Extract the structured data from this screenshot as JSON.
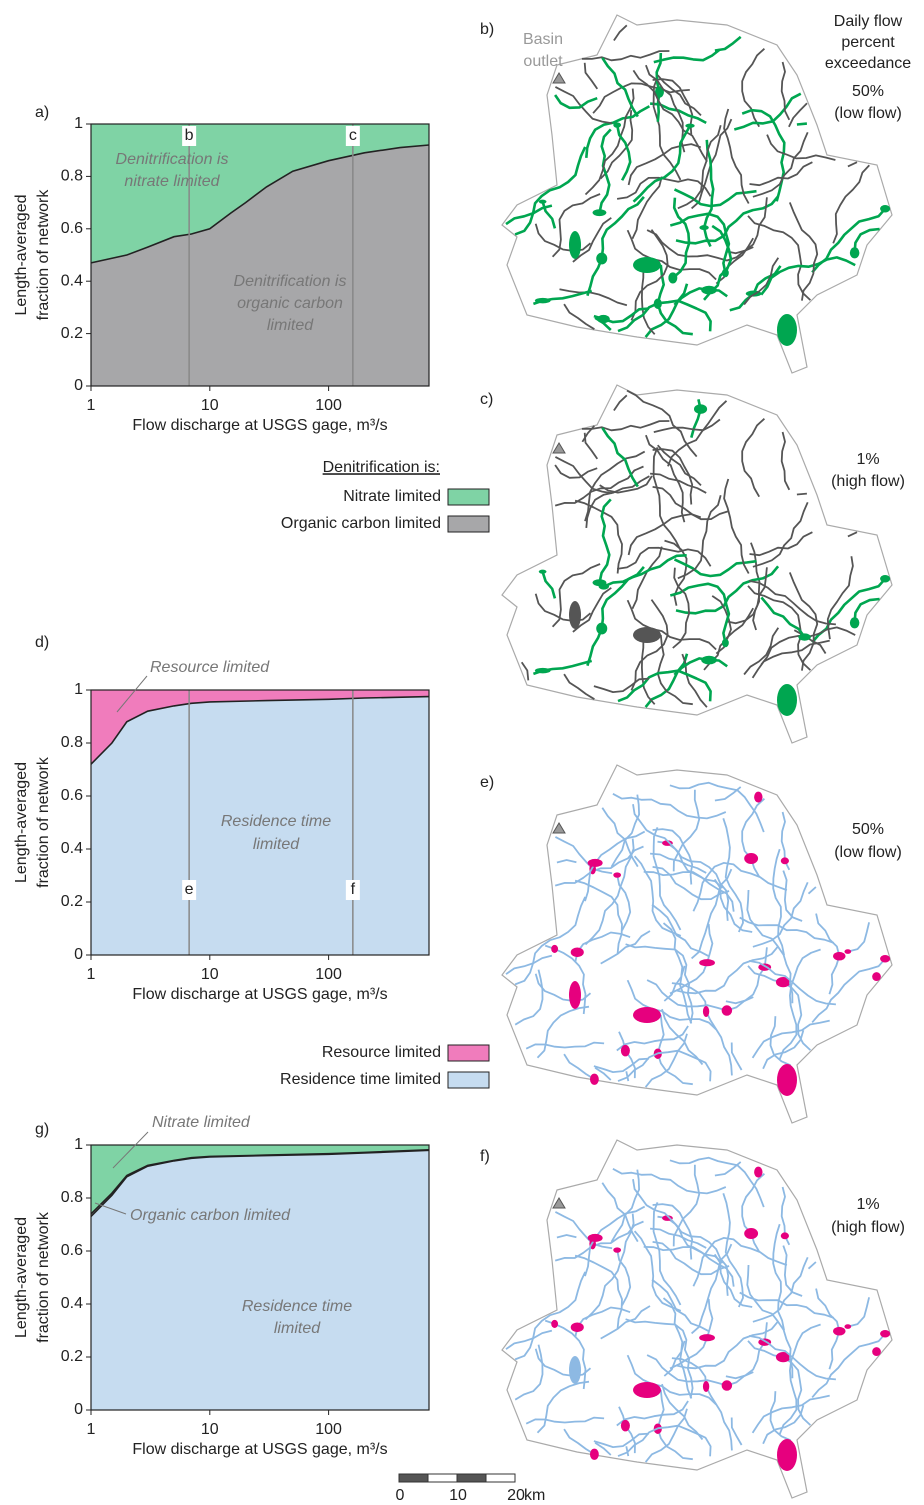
{
  "chart_data": [
    {
      "type": "area",
      "panel": "a)",
      "xscale": "log",
      "xlim": [
        1,
        700
      ],
      "ylim": [
        0,
        1
      ],
      "xticks": [
        1,
        10,
        100
      ],
      "yticks": [
        0,
        0.2,
        0.4,
        0.6,
        0.8,
        1
      ],
      "xlabel": "Flow discharge at USGS gage, m³/s",
      "ylabel": [
        "Length-averaged",
        "fraction of network"
      ],
      "x": [
        1,
        2,
        3,
        5,
        7,
        10,
        15,
        20,
        30,
        50,
        100,
        200,
        400,
        700
      ],
      "legend_title": "Denitrification is:",
      "series": [
        {
          "name": "Nitrate limited",
          "color": "#7fd3a5",
          "values": [
            0.53,
            0.5,
            0.47,
            0.43,
            0.42,
            0.4,
            0.34,
            0.3,
            0.24,
            0.18,
            0.14,
            0.11,
            0.09,
            0.08
          ]
        },
        {
          "name": "Organic carbon limited",
          "color": "#a7a7a9",
          "values": [
            0.47,
            0.5,
            0.53,
            0.57,
            0.58,
            0.6,
            0.66,
            0.7,
            0.76,
            0.82,
            0.86,
            0.89,
            0.91,
            0.92
          ]
        }
      ],
      "markers": [
        {
          "x": 6.7,
          "label": "b"
        },
        {
          "x": 160,
          "label": "c"
        }
      ],
      "annotations": [
        [
          "Denitrification is",
          "nitrate limited"
        ],
        [
          "Denitrification is",
          "organic carbon",
          "limited"
        ]
      ]
    },
    {
      "type": "area",
      "panel": "d)",
      "xscale": "log",
      "xlim": [
        1,
        700
      ],
      "ylim": [
        0,
        1
      ],
      "xticks": [
        1,
        10,
        100
      ],
      "yticks": [
        0,
        0.2,
        0.4,
        0.6,
        0.8,
        1
      ],
      "xlabel": "Flow discharge at USGS gage, m³/s",
      "ylabel": [
        "Length-averaged",
        "fraction of network"
      ],
      "x": [
        1,
        1.5,
        2,
        3,
        5,
        7,
        10,
        30,
        100,
        200,
        700
      ],
      "series": [
        {
          "name": "Resource limited",
          "color": "#f07cbc",
          "values": [
            0.28,
            0.2,
            0.12,
            0.08,
            0.06,
            0.05,
            0.045,
            0.04,
            0.035,
            0.03,
            0.025
          ]
        },
        {
          "name": "Residence time limited",
          "color": "#c6dcf0",
          "values": [
            0.72,
            0.8,
            0.88,
            0.92,
            0.94,
            0.95,
            0.955,
            0.96,
            0.965,
            0.97,
            0.975
          ]
        }
      ],
      "markers": [
        {
          "x": 6.7,
          "label": "e"
        },
        {
          "x": 160,
          "label": "f"
        }
      ],
      "annotations": [
        [
          "Resource limited"
        ],
        [
          "Residence time",
          "limited"
        ]
      ]
    },
    {
      "type": "area",
      "panel": "g)",
      "xscale": "log",
      "xlim": [
        1,
        700
      ],
      "ylim": [
        0,
        1
      ],
      "xticks": [
        1,
        10,
        100
      ],
      "yticks": [
        0,
        0.2,
        0.4,
        0.6,
        0.8,
        1
      ],
      "xlabel": "Flow discharge at USGS gage, m³/s",
      "ylabel": [
        "Length-averaged",
        "fraction of network"
      ],
      "x": [
        1,
        1.5,
        2,
        3,
        5,
        7,
        10,
        30,
        100,
        200,
        700
      ],
      "series": [
        {
          "color": "#7fd3a5",
          "values": [
            0.26,
            0.182,
            0.115,
            0.077,
            0.058,
            0.048,
            0.043,
            0.038,
            0.033,
            0.028,
            0.018
          ]
        },
        {
          "color": "#a7a7a9",
          "values": [
            0.01,
            0.008,
            0.005,
            0.003,
            0.002,
            0.002,
            0.002,
            0.002,
            0.002,
            0.002,
            0.002
          ]
        },
        {
          "color": "#c6dcf0",
          "values": [
            0.73,
            0.81,
            0.88,
            0.92,
            0.94,
            0.95,
            0.955,
            0.96,
            0.965,
            0.97,
            0.98
          ]
        }
      ],
      "annotations": [
        [
          "Nitrate limited"
        ],
        [
          "Organic carbon limited"
        ],
        [
          "Residence time",
          "limited"
        ]
      ]
    }
  ],
  "maps": [
    {
      "panel": "b)",
      "outlet_label": [
        "Basin",
        "outlet"
      ],
      "header": [
        "Daily flow",
        "percent",
        "exceedance"
      ],
      "exceedance": "50%",
      "condition": "(low flow)"
    },
    {
      "panel": "c)",
      "exceedance": "1%",
      "condition": "(high flow)"
    },
    {
      "panel": "e)",
      "exceedance": "50%",
      "condition": "(low flow)"
    },
    {
      "panel": "f)",
      "exceedance": "1%",
      "condition": "(high flow)"
    }
  ],
  "scale_bar": {
    "labels": [
      "0",
      "10",
      "20"
    ],
    "unit": "km"
  }
}
